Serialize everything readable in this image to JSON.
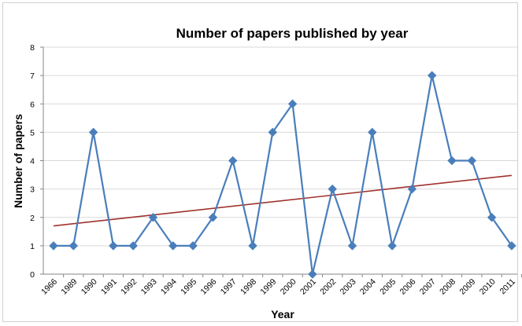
{
  "chart_data": {
    "type": "line",
    "title": "Number of papers published by year",
    "xlabel": "Year",
    "ylabel": "Number of papers",
    "categories": [
      "1966",
      "1989",
      "1990",
      "1991",
      "1992",
      "1993",
      "1994",
      "1995",
      "1996",
      "1997",
      "1998",
      "1999",
      "2000",
      "2001",
      "2002",
      "2003",
      "2004",
      "2005",
      "2006",
      "2007",
      "2008",
      "2009",
      "2010",
      "2011"
    ],
    "series": [
      {
        "values": [
          1,
          1,
          5,
          1,
          1,
          2,
          1,
          1,
          2,
          4,
          1,
          5,
          6,
          0,
          3,
          1,
          5,
          1,
          3,
          7,
          4,
          4,
          2,
          1
        ]
      }
    ],
    "trendline": {
      "type": "linear",
      "start": 1.7,
      "end": 3.48
    },
    "ylim": [
      0,
      8
    ],
    "yticks": [
      "0",
      "1",
      "2",
      "3",
      "4",
      "5",
      "6",
      "7",
      "8"
    ],
    "grid": true,
    "colors": {
      "series": "#4A7EBB",
      "trendline": "#A0322D",
      "grid": "#D9D9D9",
      "axis": "#868686"
    }
  }
}
